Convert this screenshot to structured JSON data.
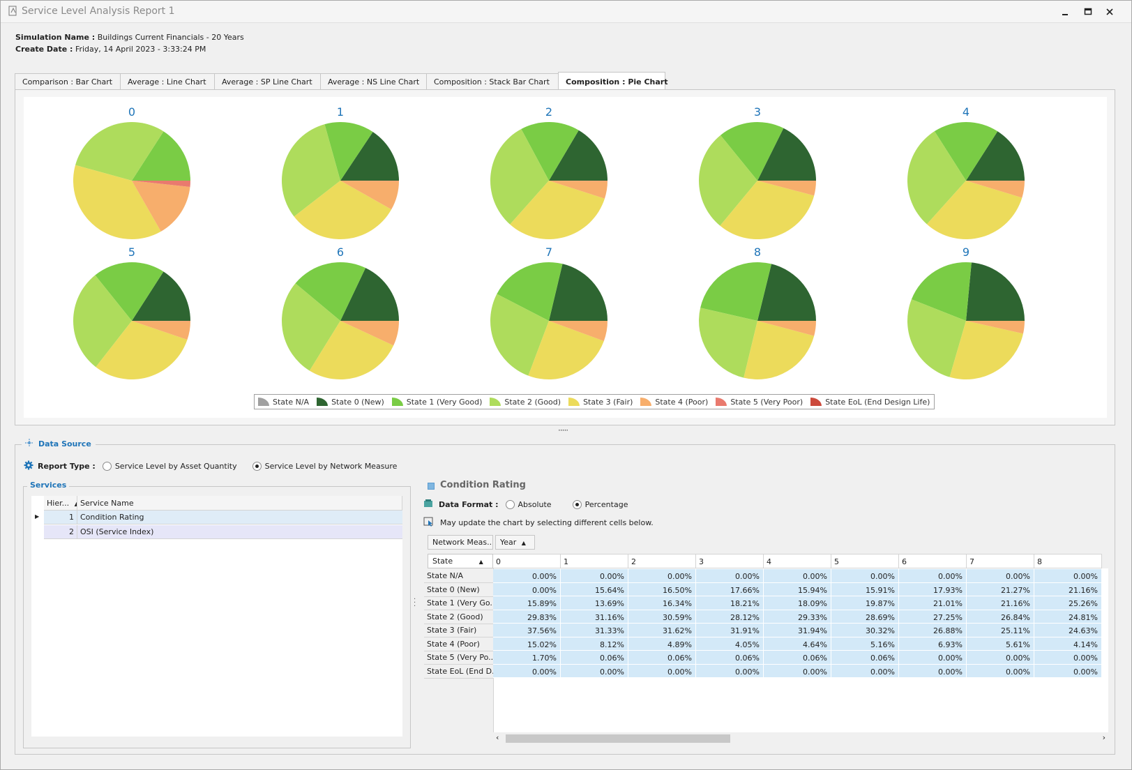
{
  "window": {
    "title": "Service Level Analysis Report 1",
    "controls": [
      "minimize-icon",
      "maximize-icon",
      "close-icon"
    ]
  },
  "header": {
    "simulation_label": "Simulation Name :",
    "simulation_value": "Buildings Current Financials - 20 Years",
    "date_label": "Create Date :",
    "date_value": "Friday, 14 April 2023 - 3:33:24 PM"
  },
  "tabs": [
    {
      "label": "Comparison : Bar Chart"
    },
    {
      "label": "Average : Line Chart"
    },
    {
      "label": "Average : SP Line Chart"
    },
    {
      "label": "Average : NS Line Chart"
    },
    {
      "label": "Composition : Stack Bar Chart"
    },
    {
      "label": "Composition : Pie Chart",
      "active": true
    }
  ],
  "colors": {
    "na": "#a0a0a0",
    "s0": "#2e6531",
    "s1": "#7acc45",
    "s2": "#aedc5c",
    "s3": "#ecdb5b",
    "s4": "#f7ae6c",
    "s5": "#e97a6e",
    "eol": "#cc4a3c",
    "accent": "#1e74b8"
  },
  "chart_data": {
    "type": "pie",
    "categories": [
      "State N/A",
      "State 0 (New)",
      "State 1 (Very Good)",
      "State 2 (Good)",
      "State 3 (Fair)",
      "State 4 (Poor)",
      "State 5 (Very Poor)",
      "State EoL (End Design Life)"
    ],
    "legend_position": "bottom-center",
    "pies": [
      {
        "label": "0",
        "values": [
          0,
          0,
          15.89,
          29.83,
          37.56,
          15.02,
          1.7,
          0
        ]
      },
      {
        "label": "1",
        "values": [
          0,
          15.64,
          13.69,
          31.16,
          31.33,
          8.12,
          0.06,
          0
        ]
      },
      {
        "label": "2",
        "values": [
          0,
          16.5,
          16.34,
          30.59,
          31.62,
          4.89,
          0.06,
          0
        ]
      },
      {
        "label": "3",
        "values": [
          0,
          17.66,
          18.21,
          28.12,
          31.91,
          4.05,
          0.06,
          0
        ]
      },
      {
        "label": "4",
        "values": [
          0,
          15.94,
          18.09,
          29.33,
          31.94,
          4.64,
          0.06,
          0
        ]
      },
      {
        "label": "5",
        "values": [
          0,
          15.91,
          19.87,
          28.69,
          30.32,
          5.16,
          0.06,
          0
        ]
      },
      {
        "label": "6",
        "values": [
          0,
          17.93,
          21.01,
          27.25,
          26.88,
          6.93,
          0,
          0
        ]
      },
      {
        "label": "7",
        "values": [
          0,
          21.27,
          21.16,
          26.84,
          25.11,
          5.61,
          0,
          0
        ]
      },
      {
        "label": "8",
        "values": [
          0,
          21.16,
          25.26,
          24.81,
          24.63,
          4.14,
          0,
          0
        ]
      },
      {
        "label": "9",
        "values": [
          0,
          23.5,
          20.5,
          26.5,
          26.0,
          3.5,
          0,
          0
        ]
      }
    ]
  },
  "legend": [
    {
      "label": "State N/A",
      "key": "na"
    },
    {
      "label": "State 0 (New)",
      "key": "s0"
    },
    {
      "label": "State 1 (Very Good)",
      "key": "s1"
    },
    {
      "label": "State 2 (Good)",
      "key": "s2"
    },
    {
      "label": "State 3 (Fair)",
      "key": "s3"
    },
    {
      "label": "State 4 (Poor)",
      "key": "s4"
    },
    {
      "label": "State 5 (Very Poor)",
      "key": "s5"
    },
    {
      "label": "State EoL (End Design Life)",
      "key": "eol"
    }
  ],
  "data_source": {
    "title": "Data Source",
    "report_type_label": "Report Type :",
    "option_quantity": "Service Level by Asset Quantity",
    "option_network": "Service Level by Network Measure",
    "selected": "network"
  },
  "services": {
    "title": "Services",
    "col_hier": "Hier...",
    "col_name": "Service Name",
    "rows": [
      {
        "hier": "1",
        "name": "Condition Rating"
      },
      {
        "hier": "2",
        "name": "OSI (Service Index)"
      }
    ]
  },
  "condition": {
    "title": "Condition Rating",
    "data_format_label": "Data Format :",
    "option_absolute": "Absolute",
    "option_percentage": "Percentage",
    "selected": "percentage",
    "hint": "May update the chart by selecting different cells below.",
    "chip_network": "Network Meas...",
    "chip_year": "Year",
    "chip_state": "State",
    "columns": [
      "0",
      "1",
      "2",
      "3",
      "4",
      "5",
      "6",
      "7",
      "8"
    ],
    "rows": [
      {
        "state": "State N/A",
        "cells": [
          "0.00%",
          "0.00%",
          "0.00%",
          "0.00%",
          "0.00%",
          "0.00%",
          "0.00%",
          "0.00%",
          "0.00%"
        ]
      },
      {
        "state": "State 0 (New)",
        "cells": [
          "0.00%",
          "15.64%",
          "16.50%",
          "17.66%",
          "15.94%",
          "15.91%",
          "17.93%",
          "21.27%",
          "21.16%"
        ]
      },
      {
        "state": "State 1 (Very Go...",
        "cells": [
          "15.89%",
          "13.69%",
          "16.34%",
          "18.21%",
          "18.09%",
          "19.87%",
          "21.01%",
          "21.16%",
          "25.26%"
        ]
      },
      {
        "state": "State 2 (Good)",
        "cells": [
          "29.83%",
          "31.16%",
          "30.59%",
          "28.12%",
          "29.33%",
          "28.69%",
          "27.25%",
          "26.84%",
          "24.81%"
        ]
      },
      {
        "state": "State 3 (Fair)",
        "cells": [
          "37.56%",
          "31.33%",
          "31.62%",
          "31.91%",
          "31.94%",
          "30.32%",
          "26.88%",
          "25.11%",
          "24.63%"
        ]
      },
      {
        "state": "State 4 (Poor)",
        "cells": [
          "15.02%",
          "8.12%",
          "4.89%",
          "4.05%",
          "4.64%",
          "5.16%",
          "6.93%",
          "5.61%",
          "4.14%"
        ]
      },
      {
        "state": "State 5 (Very Po...",
        "cells": [
          "1.70%",
          "0.06%",
          "0.06%",
          "0.06%",
          "0.06%",
          "0.06%",
          "0.00%",
          "0.00%",
          "0.00%"
        ]
      },
      {
        "state": "State EoL (End D...",
        "cells": [
          "0.00%",
          "0.00%",
          "0.00%",
          "0.00%",
          "0.00%",
          "0.00%",
          "0.00%",
          "0.00%",
          "0.00%"
        ]
      }
    ]
  }
}
